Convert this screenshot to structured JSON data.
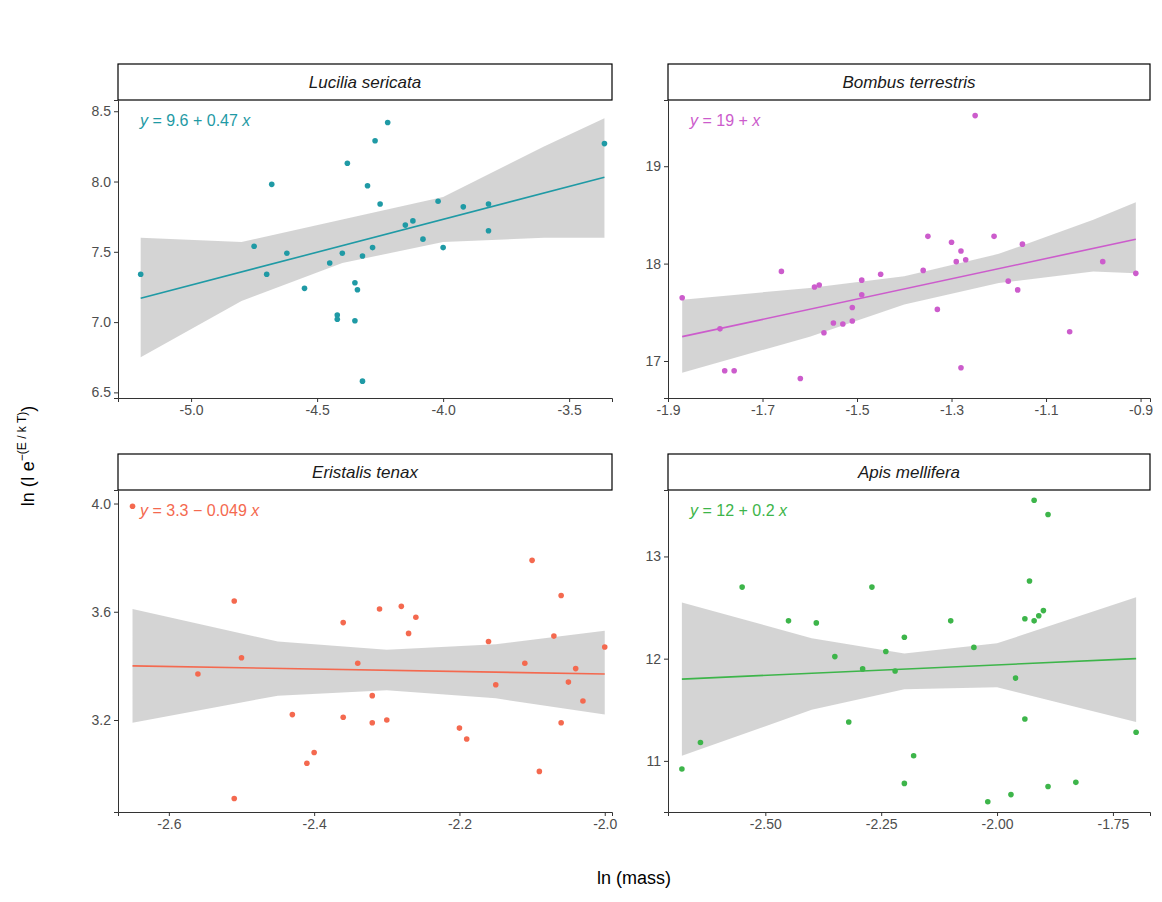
{
  "y_label": {
    "text": "ln (I e",
    "superscript": "−(E / k T)",
    "tail": ")"
  },
  "x_label": "ln (mass)",
  "chart_data": [
    {
      "type": "scatter",
      "title": "Lucilia sericata",
      "annotation": "y = 9.6 + 0.47 x",
      "color": "#1f9aa5",
      "xlim": [
        -5.29,
        -3.33
      ],
      "xticks": [
        {
          "value": -5,
          "label": "-5.0"
        },
        -4.5,
        {
          "value": -4,
          "label": "-4.0"
        },
        -3.5
      ],
      "ylim": [
        6.46,
        8.58
      ],
      "yticks": [
        6.5,
        {
          "value": 7,
          "label": "7.0"
        },
        7.5,
        {
          "value": 8,
          "label": "8.0"
        },
        8.5
      ],
      "series": [
        {
          "type": "area",
          "color": "#cccccc",
          "x": [
            -5.2,
            -4.8,
            -4.4,
            -4.0,
            -3.6,
            -3.36
          ],
          "lower": [
            6.75,
            7.15,
            7.42,
            7.57,
            7.6,
            7.6
          ],
          "upper": [
            7.6,
            7.57,
            7.73,
            7.89,
            8.25,
            8.45
          ]
        },
        {
          "type": "line",
          "color": "#1f9aa5",
          "x": [
            -5.2,
            -3.36
          ],
          "values": [
            7.17,
            8.03
          ]
        },
        {
          "type": "scatter",
          "color": "#1f9aa5",
          "marker": "circle",
          "x": [
            -5.2,
            -4.75,
            -4.68,
            -4.7,
            -4.62,
            -4.55,
            -4.45,
            -4.42,
            -4.42,
            -4.4,
            -4.38,
            -4.35,
            -4.34,
            -4.35,
            -4.32,
            -4.32,
            -4.3,
            -4.28,
            -4.27,
            -4.25,
            -4.22,
            -4.15,
            -4.12,
            -4.08,
            -4.02,
            -4.0,
            -3.92,
            -3.82,
            -3.82,
            -3.36
          ],
          "values": [
            7.34,
            7.54,
            7.98,
            7.34,
            7.49,
            7.24,
            7.42,
            7.05,
            7.02,
            7.49,
            8.13,
            7.28,
            7.23,
            7.01,
            6.58,
            7.47,
            7.97,
            7.53,
            8.29,
            7.84,
            8.42,
            7.69,
            7.72,
            7.59,
            7.86,
            7.53,
            7.82,
            7.84,
            7.65,
            8.27
          ]
        }
      ]
    },
    {
      "type": "scatter",
      "title": "Bombus terrestris",
      "annotation": "y = 19 + x",
      "color": "#cc5ccc",
      "xlim": [
        -1.9,
        -0.88
      ],
      "xticks": [
        -1.9,
        -1.7,
        -1.5,
        -1.3,
        -1.1,
        -0.9
      ],
      "ylim": [
        16.62,
        19.68
      ],
      "yticks": [
        17,
        18,
        19
      ],
      "series": [
        {
          "type": "area",
          "color": "#cccccc",
          "x": [
            -1.87,
            -1.6,
            -1.4,
            -1.2,
            -1.0,
            -0.91
          ],
          "lower": [
            16.88,
            17.25,
            17.58,
            17.8,
            17.92,
            17.9
          ],
          "upper": [
            17.63,
            17.75,
            17.87,
            18.1,
            18.45,
            18.63
          ]
        },
        {
          "type": "line",
          "color": "#cc5ccc",
          "x": [
            -1.87,
            -0.91
          ],
          "values": [
            17.25,
            18.25
          ]
        },
        {
          "type": "scatter",
          "color": "#cc5ccc",
          "marker": "circle",
          "x": [
            -1.87,
            -1.79,
            -1.78,
            -1.76,
            -1.66,
            -1.62,
            -1.59,
            -1.58,
            -1.57,
            -1.55,
            -1.53,
            -1.51,
            -1.51,
            -1.49,
            -1.49,
            -1.45,
            -1.36,
            -1.35,
            -1.33,
            -1.3,
            -1.29,
            -1.28,
            -1.28,
            -1.27,
            -1.25,
            -1.21,
            -1.18,
            -1.16,
            -1.15,
            -1.05,
            -0.98,
            -0.91
          ],
          "values": [
            17.65,
            17.33,
            16.9,
            16.9,
            17.92,
            16.82,
            17.76,
            17.78,
            17.29,
            17.39,
            17.38,
            17.55,
            17.41,
            17.83,
            17.68,
            17.89,
            17.93,
            18.28,
            17.53,
            18.22,
            18.02,
            18.13,
            16.93,
            18.04,
            19.52,
            18.28,
            17.82,
            17.73,
            18.2,
            17.3,
            18.02,
            17.9
          ]
        }
      ]
    },
    {
      "type": "scatter",
      "title": "Eristalis tenax",
      "annotation": "y = 3.3 − 0.049 x",
      "color": "#f4694f",
      "xlim": [
        -2.67,
        -1.99
      ],
      "xticks": [
        -2.6,
        -2.4,
        -2.2,
        {
          "value": -2,
          "label": "-2.0"
        }
      ],
      "ylim": [
        2.86,
        4.05
      ],
      "yticks": [
        3.2,
        3.6,
        {
          "value": 4,
          "label": "4.0"
        }
      ],
      "series": [
        {
          "type": "area",
          "color": "#cccccc",
          "x": [
            -2.65,
            -2.45,
            -2.3,
            -2.15,
            -2.0
          ],
          "lower": [
            3.19,
            3.29,
            3.31,
            3.28,
            3.22
          ],
          "upper": [
            3.61,
            3.49,
            3.46,
            3.48,
            3.53
          ]
        },
        {
          "type": "line",
          "color": "#f4694f",
          "x": [
            -2.65,
            -2.0
          ],
          "values": [
            3.4,
            3.37
          ]
        },
        {
          "type": "scatter",
          "color": "#f4694f",
          "marker": "circle",
          "x": [
            -2.65,
            -2.56,
            -2.51,
            -2.51,
            -2.5,
            -2.43,
            -2.41,
            -2.4,
            -2.36,
            -2.36,
            -2.34,
            -2.32,
            -2.32,
            -2.31,
            -2.3,
            -2.28,
            -2.27,
            -2.26,
            -2.2,
            -2.19,
            -2.16,
            -2.15,
            -2.11,
            -2.1,
            -2.09,
            -2.07,
            -2.06,
            -2.06,
            -2.05,
            -2.04,
            -2.03,
            -2.0
          ],
          "values": [
            3.99,
            3.37,
            3.64,
            2.91,
            3.43,
            3.22,
            3.04,
            3.08,
            3.56,
            3.21,
            3.41,
            3.29,
            3.19,
            3.61,
            3.2,
            3.62,
            3.52,
            3.58,
            3.17,
            3.13,
            3.49,
            3.33,
            3.41,
            3.79,
            3.01,
            3.51,
            3.66,
            3.19,
            3.34,
            3.39,
            3.27,
            3.47
          ]
        }
      ]
    },
    {
      "type": "scatter",
      "title": "Apis mellifera",
      "annotation": "y = 12 + 0.2 x",
      "color": "#3db54a",
      "xlim": [
        -2.71,
        -1.67
      ],
      "xticks": [
        {
          "value": -2.5,
          "label": "-2.50"
        },
        -2.25,
        {
          "value": -2,
          "label": "-2.00"
        },
        -1.75
      ],
      "ylim": [
        10.5,
        13.65
      ],
      "yticks": [
        11,
        12,
        13
      ],
      "series": [
        {
          "type": "area",
          "color": "#cccccc",
          "x": [
            -2.68,
            -2.4,
            -2.2,
            -2.0,
            -1.7
          ],
          "lower": [
            11.05,
            11.5,
            11.7,
            11.72,
            11.38
          ],
          "upper": [
            12.55,
            12.2,
            12.05,
            12.15,
            12.6
          ]
        },
        {
          "type": "line",
          "color": "#3db54a",
          "x": [
            -2.68,
            -1.7
          ],
          "values": [
            11.8,
            12.0
          ]
        },
        {
          "type": "scatter",
          "color": "#3db54a",
          "marker": "circle",
          "x": [
            -2.68,
            -2.64,
            -2.55,
            -2.45,
            -2.39,
            -2.35,
            -2.32,
            -2.29,
            -2.27,
            -2.24,
            -2.22,
            -2.2,
            -2.2,
            -2.18,
            -2.1,
            -2.05,
            -2.02,
            -1.97,
            -1.96,
            -1.94,
            -1.94,
            -1.93,
            -1.92,
            -1.91,
            -1.92,
            -1.9,
            -1.89,
            -1.89,
            -1.83,
            -1.7
          ],
          "values": [
            10.92,
            11.18,
            12.7,
            12.37,
            12.35,
            12.02,
            11.38,
            11.9,
            12.7,
            12.07,
            11.88,
            12.21,
            10.78,
            11.05,
            12.37,
            12.11,
            10.6,
            10.67,
            11.81,
            11.41,
            12.39,
            12.76,
            12.37,
            12.42,
            13.55,
            12.47,
            13.41,
            10.75,
            10.79,
            11.28
          ]
        }
      ]
    }
  ]
}
